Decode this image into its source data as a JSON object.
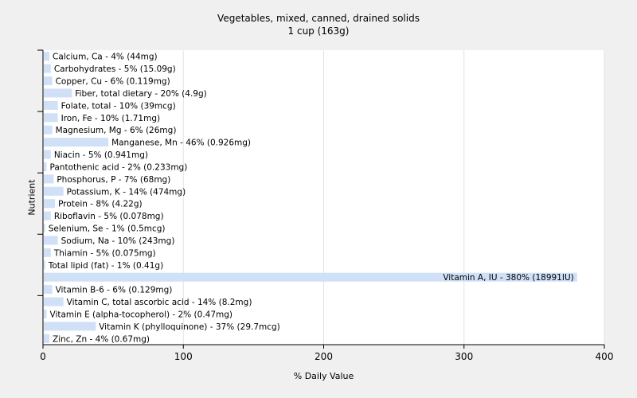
{
  "chart_data": {
    "type": "bar",
    "orientation": "horizontal",
    "title": "Vegetables, mixed, canned, drained solids",
    "subtitle": "1 cup (163g)",
    "xlabel": "% Daily Value",
    "ylabel": "Nutrient",
    "xlim": [
      0,
      400
    ],
    "xticks": [
      0,
      100,
      200,
      300,
      400
    ],
    "grid": true,
    "bar_color": "#cfe0f7",
    "categories": [
      "Calcium, Ca",
      "Carbohydrates",
      "Copper, Cu",
      "Fiber, total dietary",
      "Folate, total",
      "Iron, Fe",
      "Magnesium, Mg",
      "Manganese, Mn",
      "Niacin",
      "Pantothenic acid",
      "Phosphorus, P",
      "Potassium, K",
      "Protein",
      "Riboflavin",
      "Selenium, Se",
      "Sodium, Na",
      "Thiamin",
      "Total lipid (fat)",
      "Vitamin A, IU",
      "Vitamin B-6",
      "Vitamin C, total ascorbic acid",
      "Vitamin E (alpha-tocopherol)",
      "Vitamin K (phylloquinone)",
      "Zinc, Zn"
    ],
    "values": [
      4,
      5,
      6,
      20,
      10,
      10,
      6,
      46,
      5,
      2,
      7,
      14,
      8,
      5,
      1,
      10,
      5,
      1,
      380,
      6,
      14,
      2,
      37,
      4
    ],
    "labels": [
      "Calcium, Ca - 4% (44mg)",
      "Carbohydrates - 5% (15.09g)",
      "Copper, Cu - 6% (0.119mg)",
      "Fiber, total dietary - 20% (4.9g)",
      "Folate, total - 10% (39mcg)",
      "Iron, Fe - 10% (1.71mg)",
      "Magnesium, Mg - 6% (26mg)",
      "Manganese, Mn - 46% (0.926mg)",
      "Niacin - 5% (0.941mg)",
      "Pantothenic acid - 2% (0.233mg)",
      "Phosphorus, P - 7% (68mg)",
      "Potassium, K - 14% (474mg)",
      "Protein - 8% (4.22g)",
      "Riboflavin - 5% (0.078mg)",
      "Selenium, Se - 1% (0.5mcg)",
      "Sodium, Na - 10% (243mg)",
      "Thiamin - 5% (0.075mg)",
      "Total lipid (fat) - 1% (0.41g)",
      "Vitamin A, IU - 380% (18991IU)",
      "Vitamin B-6 - 6% (0.129mg)",
      "Vitamin C, total ascorbic acid - 14% (8.2mg)",
      "Vitamin E (alpha-tocopherol) - 2% (0.47mg)",
      "Vitamin K (phylloquinone) - 37% (29.7mcg)",
      "Zinc, Zn - 4% (0.67mg)"
    ]
  }
}
